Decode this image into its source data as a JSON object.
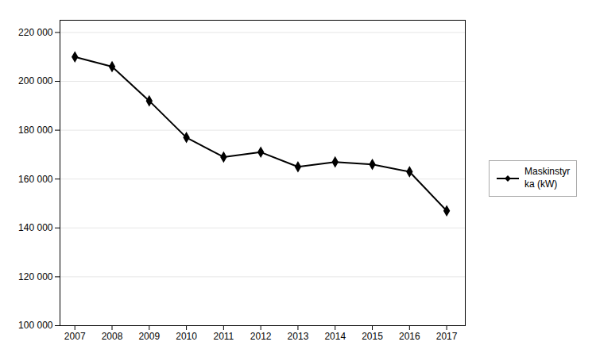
{
  "chart_data": {
    "type": "line",
    "x": [
      2007,
      2008,
      2009,
      2010,
      2011,
      2012,
      2013,
      2014,
      2015,
      2016,
      2017
    ],
    "series": [
      {
        "name": "Maskinstyr\nka (kW)",
        "color": "#000000",
        "marker": "diamond",
        "values": [
          210000,
          206000,
          192000,
          177000,
          169000,
          171000,
          165000,
          167000,
          166000,
          163000,
          147000
        ]
      }
    ],
    "xlim": [
      2006.6,
      2017.5
    ],
    "xticks": [
      2007,
      2008,
      2009,
      2010,
      2011,
      2012,
      2013,
      2014,
      2015,
      2016,
      2017
    ],
    "ylim": [
      100000,
      225000
    ],
    "yticks": [
      {
        "value": 100000,
        "label": "100 000"
      },
      {
        "value": 120000,
        "label": "120 000"
      },
      {
        "value": 140000,
        "label": "140 000"
      },
      {
        "value": 160000,
        "label": "160 000"
      },
      {
        "value": 180000,
        "label": "180 000"
      },
      {
        "value": 200000,
        "label": "200 000"
      },
      {
        "value": 220000,
        "label": "220 000"
      }
    ],
    "grid": true,
    "legend": "right"
  }
}
